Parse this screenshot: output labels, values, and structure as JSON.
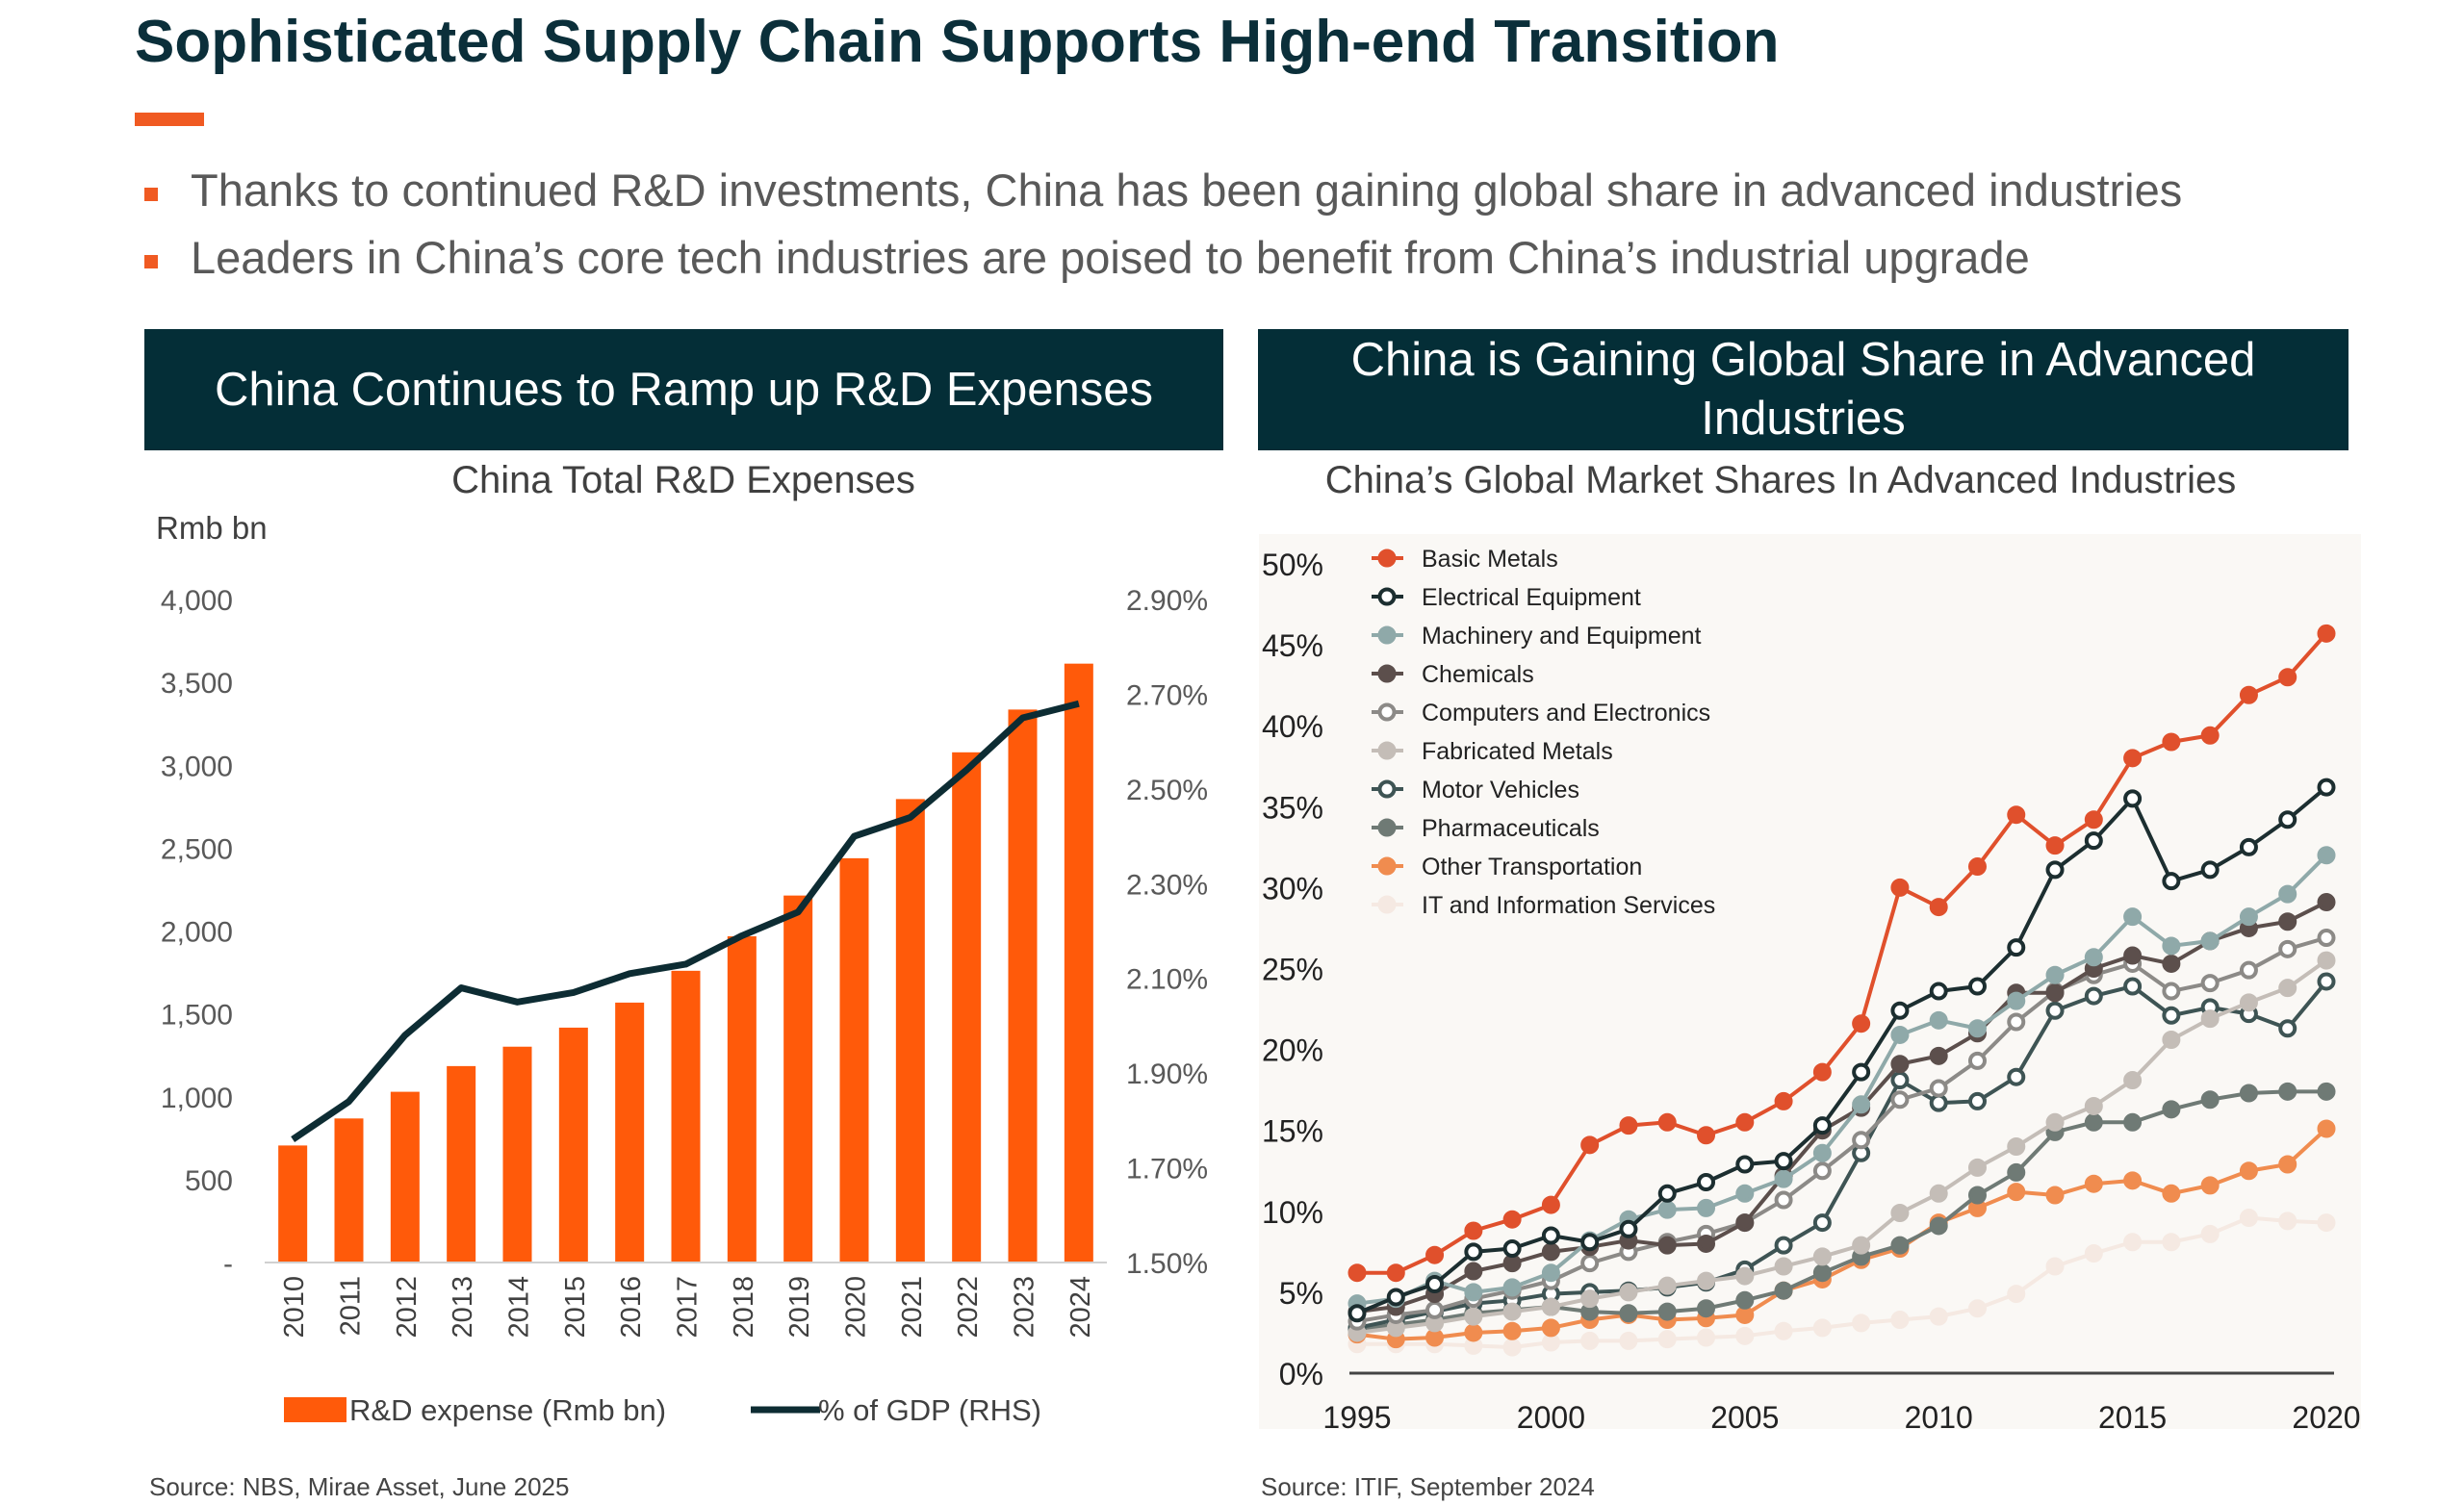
{
  "page": {
    "title": "Sophisticated Supply Chain Supports High-end Transition",
    "accent_color": "#f05a22",
    "bullets": [
      "Thanks to continued R&D investments, China has been gaining global share in advanced industries",
      "Leaders in China’s core tech industries are poised to benefit from China’s industrial upgrade"
    ]
  },
  "left_panel": {
    "banner": "China Continues to Ramp up R&D Expenses",
    "source": "Source: NBS, Mirae Asset, June 2025"
  },
  "right_panel": {
    "banner": "China is Gaining Global Share in Advanced Industries",
    "source": "Source: ITIF, September 2024"
  },
  "chart_data": [
    {
      "type": "bar",
      "title": "China Total R&D Expenses",
      "ylabel": "Rmb bn",
      "ylim": [
        0,
        4000
      ],
      "y_ticks": [
        "-",
        "500",
        "1,000",
        "1,500",
        "2,000",
        "2,500",
        "3,000",
        "3,500",
        "4,000"
      ],
      "y2lim": [
        1.5,
        2.9
      ],
      "y2_ticks": [
        "1.50%",
        "1.70%",
        "1.90%",
        "2.10%",
        "2.30%",
        "2.50%",
        "2.70%",
        "2.90%"
      ],
      "categories": [
        "2010",
        "2011",
        "2012",
        "2013",
        "2014",
        "2015",
        "2016",
        "2017",
        "2018",
        "2019",
        "2020",
        "2021",
        "2022",
        "2023",
        "2024"
      ],
      "series": [
        {
          "name": "R&D expense (Rmb bn)",
          "kind": "bar",
          "axis": "left",
          "color": "#ff5a0a",
          "values": [
            706,
            869,
            1030,
            1185,
            1302,
            1417,
            1568,
            1760,
            1968,
            2214,
            2439,
            2796,
            3078,
            3336,
            3613
          ]
        },
        {
          "name": "% of GDP (RHS)",
          "kind": "line",
          "axis": "right",
          "color": "#0d2c33",
          "values": [
            1.76,
            1.84,
            1.98,
            2.08,
            2.05,
            2.07,
            2.11,
            2.13,
            2.19,
            2.24,
            2.4,
            2.44,
            2.54,
            2.65,
            2.68
          ]
        }
      ],
      "legend": "bottom",
      "grid": false
    },
    {
      "type": "line",
      "title": "China’s Global Market Shares In Advanced Industries",
      "xlim": [
        1995,
        2020
      ],
      "x_ticks": [
        "1995",
        "2000",
        "2005",
        "2010",
        "2015",
        "2020"
      ],
      "ylim": [
        0,
        50
      ],
      "y_ticks": [
        "0%",
        "5%",
        "10%",
        "15%",
        "20%",
        "25%",
        "30%",
        "35%",
        "40%",
        "45%",
        "50%"
      ],
      "x": [
        1995,
        1996,
        1997,
        1998,
        1999,
        2000,
        2001,
        2002,
        2003,
        2004,
        2005,
        2006,
        2007,
        2008,
        2009,
        2010,
        2011,
        2012,
        2013,
        2014,
        2015,
        2016,
        2017,
        2018,
        2019,
        2020
      ],
      "series": [
        {
          "name": "Basic Metals",
          "color": "#e0502c",
          "filled": true,
          "values": [
            6.2,
            6.2,
            7.3,
            8.8,
            9.5,
            10.4,
            14.1,
            15.3,
            15.5,
            14.7,
            15.5,
            16.8,
            18.6,
            21.6,
            30.0,
            28.8,
            31.3,
            34.5,
            32.6,
            34.2,
            38.0,
            39.0,
            39.4,
            41.9,
            43.0,
            45.7
          ]
        },
        {
          "name": "Electrical Equipment",
          "color": "#1c2e30",
          "filled": false,
          "values": [
            3.7,
            4.7,
            5.5,
            7.5,
            7.7,
            8.5,
            8.1,
            8.9,
            11.1,
            11.8,
            12.9,
            13.1,
            15.3,
            18.6,
            22.4,
            23.6,
            23.9,
            26.3,
            31.1,
            32.9,
            35.5,
            30.4,
            31.1,
            32.5,
            34.2,
            36.2
          ]
        },
        {
          "name": "Machinery and Equipment",
          "color": "#8fa9a9",
          "filled": true,
          "values": [
            4.3,
            4.6,
            5.7,
            5.0,
            5.3,
            6.2,
            8.2,
            9.5,
            10.1,
            10.2,
            11.1,
            12.0,
            13.6,
            16.6,
            20.9,
            21.8,
            21.3,
            23.0,
            24.6,
            25.7,
            28.2,
            26.4,
            26.7,
            28.2,
            29.6,
            32.0
          ]
        },
        {
          "name": "Chemicals",
          "color": "#5c4f4c",
          "filled": true,
          "values": [
            3.8,
            4.1,
            4.9,
            6.3,
            6.8,
            7.5,
            7.8,
            8.2,
            7.9,
            8.0,
            9.3,
            12.2,
            15.0,
            16.4,
            19.1,
            19.6,
            21.0,
            23.5,
            23.5,
            25.0,
            25.8,
            25.3,
            26.7,
            27.5,
            27.9,
            29.1
          ]
        },
        {
          "name": "Computers and Electronics",
          "color": "#8c8a87",
          "filled": false,
          "values": [
            3.2,
            3.6,
            3.9,
            4.6,
            5.1,
            5.7,
            6.8,
            7.5,
            8.1,
            8.6,
            9.3,
            10.7,
            12.5,
            14.4,
            16.9,
            17.6,
            19.3,
            21.7,
            23.6,
            24.6,
            25.3,
            23.6,
            24.1,
            24.9,
            26.2,
            26.9
          ]
        },
        {
          "name": "Fabricated Metals",
          "color": "#c4bdb7",
          "filled": true,
          "values": [
            2.5,
            2.8,
            3.1,
            3.5,
            3.8,
            4.1,
            4.6,
            5.0,
            5.4,
            5.7,
            6.0,
            6.6,
            7.2,
            7.9,
            9.9,
            11.1,
            12.7,
            14.0,
            15.5,
            16.5,
            18.1,
            20.6,
            21.9,
            22.9,
            23.8,
            25.5
          ]
        },
        {
          "name": "Motor Vehicles",
          "color": "#3e5454",
          "filled": false,
          "values": [
            2.8,
            3.3,
            3.8,
            4.3,
            4.5,
            4.9,
            5.0,
            5.1,
            5.3,
            5.6,
            6.4,
            7.9,
            9.3,
            13.6,
            18.1,
            16.7,
            16.8,
            18.3,
            22.4,
            23.3,
            23.9,
            22.1,
            22.6,
            22.2,
            21.3,
            24.2
          ]
        },
        {
          "name": "Pharmaceuticals",
          "color": "#6f7a75",
          "filled": true,
          "values": [
            2.7,
            3.0,
            3.3,
            3.7,
            3.9,
            4.1,
            3.8,
            3.7,
            3.8,
            4.0,
            4.5,
            5.1,
            6.2,
            7.2,
            7.9,
            9.1,
            11.0,
            12.4,
            14.9,
            15.5,
            15.5,
            16.3,
            16.9,
            17.3,
            17.4,
            17.4
          ]
        },
        {
          "name": "Other Transportation",
          "color": "#f08c4f",
          "filled": true,
          "values": [
            2.4,
            2.1,
            2.2,
            2.5,
            2.6,
            2.8,
            3.3,
            3.6,
            3.3,
            3.4,
            3.6,
            5.1,
            5.8,
            7.0,
            7.7,
            9.3,
            10.2,
            11.2,
            11.0,
            11.7,
            11.9,
            11.1,
            11.6,
            12.5,
            12.9,
            15.1
          ]
        },
        {
          "name": "IT and Information Services",
          "color": "#f5e9e2",
          "filled": true,
          "values": [
            1.8,
            1.8,
            1.8,
            1.7,
            1.6,
            1.9,
            2.0,
            2.0,
            2.1,
            2.2,
            2.3,
            2.6,
            2.8,
            3.1,
            3.3,
            3.5,
            4.0,
            4.9,
            6.6,
            7.4,
            8.1,
            8.1,
            8.6,
            9.6,
            9.4,
            9.3
          ]
        }
      ],
      "legend": "top-left",
      "grid": false
    }
  ]
}
